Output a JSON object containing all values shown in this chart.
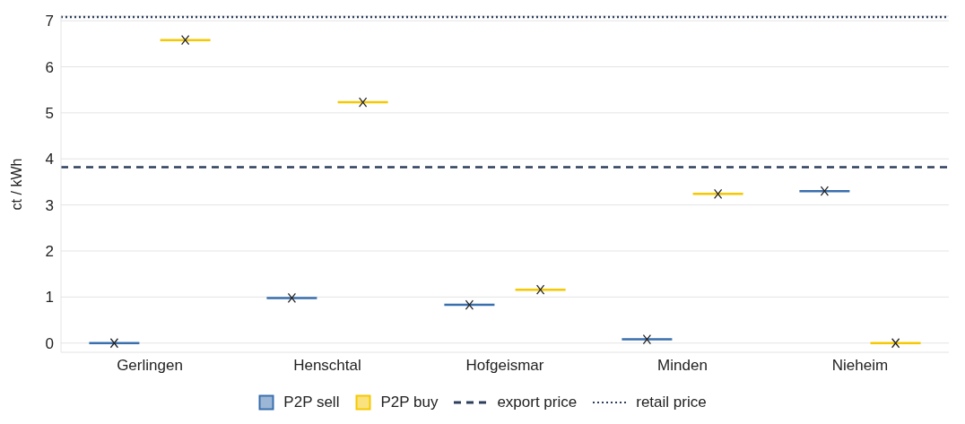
{
  "chart_data": {
    "type": "box",
    "ylabel": "ct / kWh",
    "categories": [
      "Gerlingen",
      "Henschtal",
      "Hofgeismar",
      "Minden",
      "Nieheim"
    ],
    "series": [
      {
        "name": "P2P sell",
        "color": "#3a6fad",
        "boxes": [
          {
            "low": 0,
            "q1": 0,
            "median": 0,
            "q3": 0,
            "high": 0,
            "mean": 0
          },
          {
            "low": 0.98,
            "q1": 0.98,
            "median": 0.98,
            "q3": 0.98,
            "high": 0.98,
            "mean": 0.98
          },
          {
            "low": 0.83,
            "q1": 0.83,
            "median": 0.83,
            "q3": 0.83,
            "high": 0.83,
            "mean": 0.83
          },
          {
            "low": 0.08,
            "q1": 0.08,
            "median": 0.08,
            "q3": 0.08,
            "high": 0.08,
            "mean": 0.08
          },
          {
            "low": 3.3,
            "q1": 3.3,
            "median": 3.3,
            "q3": 3.3,
            "high": 3.3,
            "mean": 3.3
          }
        ]
      },
      {
        "name": "P2P buy",
        "color": "#f5c800",
        "boxes": [
          {
            "low": 6.58,
            "q1": 6.58,
            "median": 6.58,
            "q3": 6.58,
            "high": 6.58,
            "mean": 6.58
          },
          {
            "low": 5.23,
            "q1": 5.23,
            "median": 5.23,
            "q3": 5.23,
            "high": 5.23,
            "mean": 5.23
          },
          {
            "low": 1.16,
            "q1": 1.16,
            "median": 1.16,
            "q3": 1.16,
            "high": 1.16,
            "mean": 1.16
          },
          {
            "low": 3.24,
            "q1": 3.24,
            "median": 3.24,
            "q3": 3.24,
            "high": 3.24,
            "mean": 3.24
          },
          {
            "low": 0,
            "q1": 0,
            "median": 0,
            "q3": 0,
            "high": 0,
            "mean": 0
          }
        ]
      }
    ],
    "ylim": [
      -0.2,
      7.1
    ],
    "yticks": [
      0,
      1,
      2,
      3,
      4,
      5,
      6,
      7
    ],
    "grid": "y",
    "legend": "bottom",
    "ref_lines": [
      {
        "axis": "y",
        "value": 3.82,
        "label": "export price",
        "color": "#2e3f5c",
        "line_style": "dashed"
      },
      {
        "axis": "y",
        "value": 7.08,
        "label": "retail price",
        "color": "#2e3f5c",
        "line_style": "dotted"
      }
    ]
  }
}
